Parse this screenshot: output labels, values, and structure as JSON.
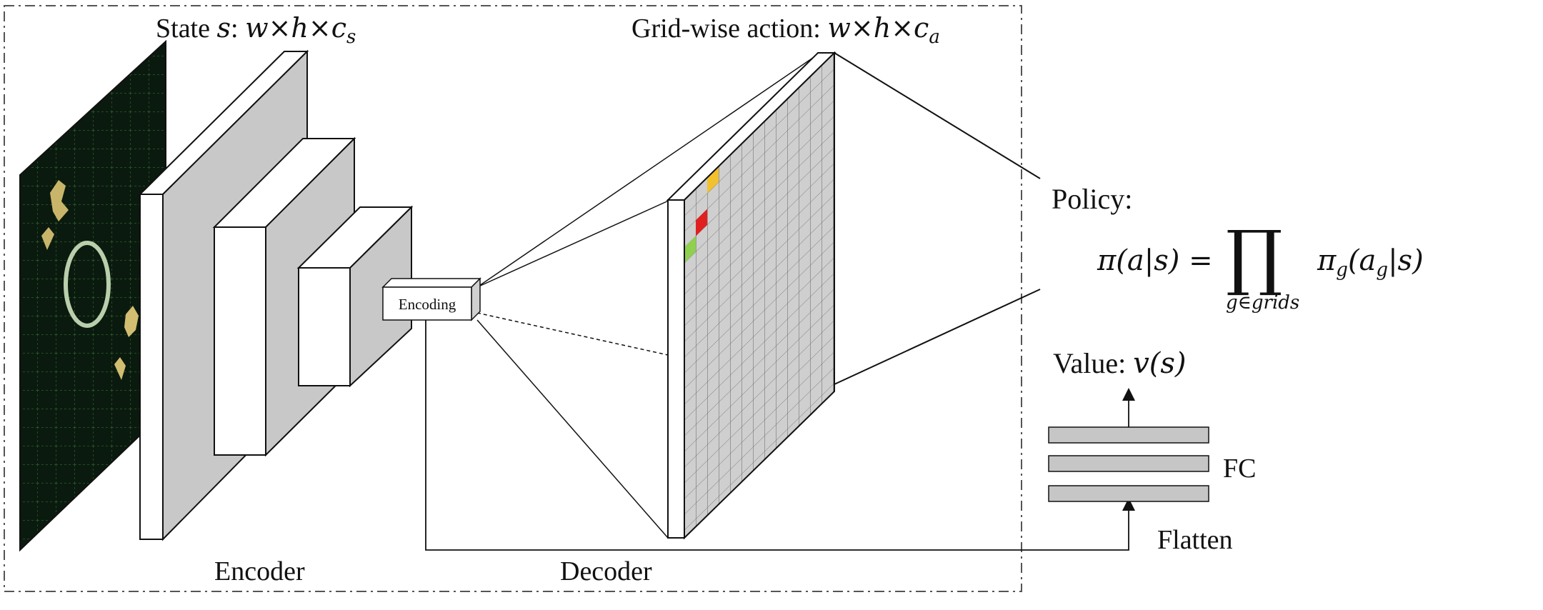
{
  "labels": {
    "state_prefix": "State ",
    "state_var": "s",
    "state_colon": ": ",
    "state_dims": "w×h×c",
    "state_sub": "s",
    "action_prefix": "Grid-wise action: ",
    "action_dims": "w×h×c",
    "action_sub": "a",
    "encoding": "Encoding",
    "encoder": "Encoder",
    "decoder": "Decoder",
    "policy": "Policy:",
    "policy_lhs": "π(a|s) =",
    "policy_product": "∏",
    "policy_under": "g∈grids",
    "policy_rhs": "π",
    "policy_rhs_sub": "g",
    "policy_rhs_args": "(a",
    "policy_rhs_args_sub": "g",
    "policy_rhs_close": "|s)",
    "value": "Value: ",
    "value_expr": "v(s)",
    "fc": "FC",
    "flatten": "Flatten"
  },
  "colors": {
    "state_bg": "#0b1a0f",
    "state_grid": "#2f6b2f",
    "layer_front": "#ffffff",
    "layer_side": "#c8c8c8",
    "grid_fill": "#cfcfcf",
    "cell_yellow": "#f2c12e",
    "cell_red": "#e02020",
    "cell_green": "#8fd14f",
    "fc_bar": "#c6c6c6"
  }
}
